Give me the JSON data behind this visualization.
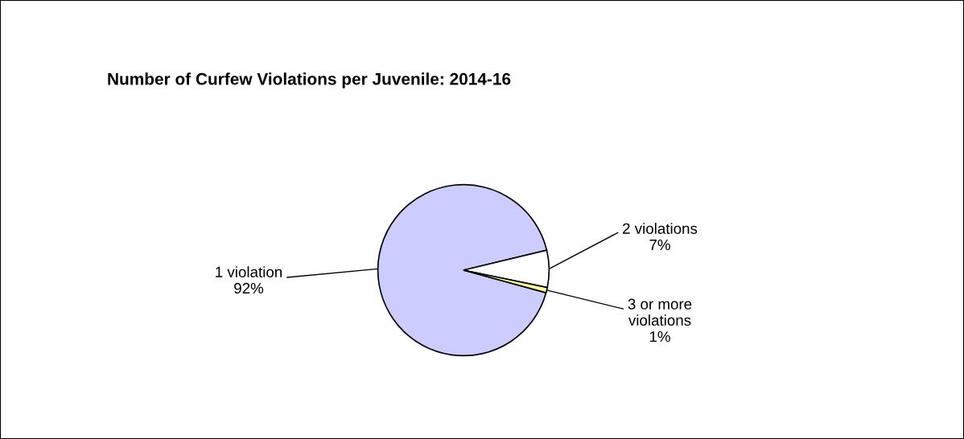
{
  "chart_data": {
    "type": "pie",
    "title": "Number of Curfew Violations per Juvenile: 2014-16",
    "categories": [
      "1 violation",
      "2 violations",
      "3 or more\nviolations"
    ],
    "values": [
      92,
      7,
      1
    ],
    "colors": [
      "#ccccff",
      "#ffffff",
      "#ffff99"
    ],
    "value_labels": [
      "92%",
      "7%",
      "1%"
    ]
  }
}
